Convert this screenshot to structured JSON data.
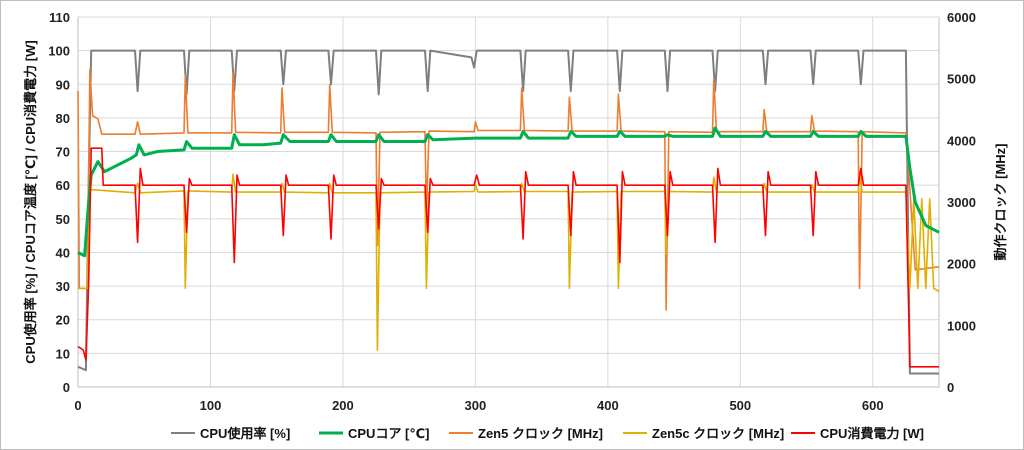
{
  "chart_data": {
    "type": "line",
    "title": "",
    "xlabel": "",
    "ylabel": "CPU使用率 [%] / CPUコア温度 [℃] / CPU消費電力 [W]",
    "y2label": "動作クロック [MHz]",
    "xlim": [
      0,
      650
    ],
    "ylim": [
      0,
      110
    ],
    "y2lim": [
      0,
      6000
    ],
    "x_ticks": [
      "0",
      "100",
      "200",
      "300",
      "400",
      "500",
      "600"
    ],
    "y_ticks": [
      "0",
      "10",
      "20",
      "30",
      "40",
      "50",
      "60",
      "70",
      "80",
      "90",
      "100",
      "110"
    ],
    "y2_ticks": [
      "0",
      "1000",
      "2000",
      "3000",
      "4000",
      "5000",
      "6000"
    ],
    "grid": true,
    "legend_position": "bottom",
    "series": [
      {
        "name": "CPU使用率 [%]",
        "axis": "left",
        "color": "#7f7f7f",
        "points": [
          [
            0,
            6
          ],
          [
            3,
            5.5
          ],
          [
            6,
            5
          ],
          [
            8,
            60
          ],
          [
            10,
            100
          ],
          [
            43,
            100
          ],
          [
            45,
            88
          ],
          [
            47,
            100
          ],
          [
            80,
            100
          ],
          [
            82,
            87
          ],
          [
            84,
            100
          ],
          [
            116,
            100
          ],
          [
            118,
            88
          ],
          [
            120,
            100
          ],
          [
            153,
            100
          ],
          [
            155,
            90
          ],
          [
            157,
            100
          ],
          [
            189,
            100
          ],
          [
            191,
            90
          ],
          [
            193,
            100
          ],
          [
            225,
            100
          ],
          [
            227,
            87
          ],
          [
            229,
            100
          ],
          [
            262,
            100
          ],
          [
            264,
            88
          ],
          [
            266,
            100
          ],
          [
            297,
            98
          ],
          [
            299,
            95
          ],
          [
            301,
            100
          ],
          [
            334,
            100
          ],
          [
            336,
            88
          ],
          [
            338,
            100
          ],
          [
            370,
            100
          ],
          [
            372,
            88
          ],
          [
            374,
            100
          ],
          [
            407,
            100
          ],
          [
            409,
            88
          ],
          [
            411,
            100
          ],
          [
            443,
            100
          ],
          [
            445,
            88
          ],
          [
            447,
            100
          ],
          [
            479,
            100
          ],
          [
            481,
            88
          ],
          [
            483,
            100
          ],
          [
            517,
            100
          ],
          [
            519,
            90
          ],
          [
            521,
            100
          ],
          [
            553,
            100
          ],
          [
            555,
            90
          ],
          [
            557,
            100
          ],
          [
            589,
            100
          ],
          [
            591,
            90
          ],
          [
            593,
            100
          ],
          [
            625,
            100
          ],
          [
            628,
            4
          ],
          [
            650,
            4
          ]
        ]
      },
      {
        "name": "CPUコア [℃]",
        "axis": "left",
        "color": "#00b050",
        "points": [
          [
            0,
            40
          ],
          [
            5,
            39
          ],
          [
            8,
            55
          ],
          [
            10,
            63
          ],
          [
            15,
            67
          ],
          [
            20,
            64
          ],
          [
            30,
            66
          ],
          [
            40,
            68
          ],
          [
            44,
            69
          ],
          [
            46,
            72
          ],
          [
            50,
            69
          ],
          [
            60,
            70
          ],
          [
            80,
            70.5
          ],
          [
            82,
            73
          ],
          [
            86,
            71
          ],
          [
            100,
            71
          ],
          [
            116,
            71
          ],
          [
            118,
            75
          ],
          [
            122,
            72
          ],
          [
            140,
            72
          ],
          [
            153,
            72.5
          ],
          [
            155,
            75
          ],
          [
            160,
            73
          ],
          [
            189,
            73
          ],
          [
            191,
            75
          ],
          [
            195,
            73
          ],
          [
            225,
            73
          ],
          [
            227,
            75
          ],
          [
            231,
            73
          ],
          [
            262,
            73
          ],
          [
            264,
            75
          ],
          [
            268,
            73.5
          ],
          [
            300,
            74
          ],
          [
            334,
            74
          ],
          [
            336,
            76
          ],
          [
            340,
            74
          ],
          [
            370,
            74
          ],
          [
            372,
            76
          ],
          [
            376,
            74.5
          ],
          [
            407,
            74.5
          ],
          [
            409,
            76
          ],
          [
            413,
            74.5
          ],
          [
            443,
            74.5
          ],
          [
            445,
            75
          ],
          [
            449,
            74.5
          ],
          [
            479,
            74.5
          ],
          [
            481,
            77
          ],
          [
            485,
            74.5
          ],
          [
            517,
            74.5
          ],
          [
            519,
            76
          ],
          [
            523,
            74.5
          ],
          [
            553,
            74.5
          ],
          [
            555,
            76
          ],
          [
            559,
            74.5
          ],
          [
            589,
            74.5
          ],
          [
            591,
            76
          ],
          [
            595,
            74.5
          ],
          [
            625,
            74.5
          ],
          [
            628,
            65
          ],
          [
            632,
            55
          ],
          [
            640,
            48
          ],
          [
            650,
            46
          ]
        ]
      },
      {
        "name": "Zen5 クロック [MHz]",
        "axis": "right",
        "color": "#ed7d31",
        "points": [
          [
            0,
            4800
          ],
          [
            1,
            1600
          ],
          [
            7,
            1600
          ],
          [
            9,
            5150
          ],
          [
            11,
            4400
          ],
          [
            15,
            4350
          ],
          [
            18,
            4100
          ],
          [
            43,
            4100
          ],
          [
            45,
            4300
          ],
          [
            47,
            4100
          ],
          [
            80,
            4120
          ],
          [
            81,
            5050
          ],
          [
            83,
            4120
          ],
          [
            116,
            4120
          ],
          [
            117,
            5100
          ],
          [
            119,
            4130
          ],
          [
            153,
            4120
          ],
          [
            154,
            4850
          ],
          [
            156,
            4130
          ],
          [
            189,
            4130
          ],
          [
            190,
            4900
          ],
          [
            192,
            4130
          ],
          [
            225,
            4120
          ],
          [
            226,
            2300
          ],
          [
            228,
            4130
          ],
          [
            262,
            4140
          ],
          [
            263,
            2800
          ],
          [
            265,
            4150
          ],
          [
            299,
            4140
          ],
          [
            300,
            4300
          ],
          [
            302,
            4160
          ],
          [
            334,
            4160
          ],
          [
            335,
            4850
          ],
          [
            337,
            4160
          ],
          [
            370,
            4150
          ],
          [
            371,
            4700
          ],
          [
            373,
            4150
          ],
          [
            407,
            4150
          ],
          [
            408,
            4750
          ],
          [
            410,
            4150
          ],
          [
            443,
            4140
          ],
          [
            444,
            1250
          ],
          [
            446,
            4140
          ],
          [
            479,
            4130
          ],
          [
            480,
            5000
          ],
          [
            482,
            4140
          ],
          [
            517,
            4140
          ],
          [
            518,
            4500
          ],
          [
            520,
            4140
          ],
          [
            553,
            4140
          ],
          [
            554,
            4400
          ],
          [
            556,
            4150
          ],
          [
            589,
            4140
          ],
          [
            590,
            1600
          ],
          [
            592,
            4140
          ],
          [
            625,
            4120
          ],
          [
            628,
            3200
          ],
          [
            632,
            1900
          ],
          [
            650,
            1950
          ]
        ]
      },
      {
        "name": "Zen5c クロック [MHz]",
        "axis": "right",
        "color": "#dfb000",
        "points": [
          [
            0,
            1600
          ],
          [
            7,
            1600
          ],
          [
            9,
            3200
          ],
          [
            11,
            3200
          ],
          [
            43,
            3150
          ],
          [
            45,
            3300
          ],
          [
            47,
            3150
          ],
          [
            80,
            3180
          ],
          [
            81,
            1600
          ],
          [
            83,
            3180
          ],
          [
            116,
            3160
          ],
          [
            117,
            3450
          ],
          [
            119,
            3160
          ],
          [
            153,
            3160
          ],
          [
            154,
            3300
          ],
          [
            156,
            3160
          ],
          [
            189,
            3150
          ],
          [
            190,
            3300
          ],
          [
            192,
            3150
          ],
          [
            225,
            3150
          ],
          [
            226,
            600
          ],
          [
            228,
            3150
          ],
          [
            262,
            3160
          ],
          [
            263,
            1600
          ],
          [
            265,
            3160
          ],
          [
            299,
            3170
          ],
          [
            300,
            3280
          ],
          [
            302,
            3160
          ],
          [
            334,
            3170
          ],
          [
            335,
            3300
          ],
          [
            337,
            3170
          ],
          [
            370,
            3170
          ],
          [
            371,
            1600
          ],
          [
            373,
            3160
          ],
          [
            407,
            3170
          ],
          [
            408,
            1600
          ],
          [
            410,
            3170
          ],
          [
            443,
            3170
          ],
          [
            444,
            2150
          ],
          [
            446,
            3170
          ],
          [
            479,
            3160
          ],
          [
            480,
            3400
          ],
          [
            482,
            3160
          ],
          [
            517,
            3160
          ],
          [
            518,
            3300
          ],
          [
            520,
            3160
          ],
          [
            553,
            3160
          ],
          [
            554,
            3280
          ],
          [
            556,
            3160
          ],
          [
            589,
            3160
          ],
          [
            590,
            3400
          ],
          [
            592,
            3160
          ],
          [
            625,
            3160
          ],
          [
            628,
            1600
          ],
          [
            631,
            3050
          ],
          [
            634,
            1600
          ],
          [
            637,
            3050
          ],
          [
            640,
            1600
          ],
          [
            643,
            3050
          ],
          [
            646,
            1600
          ],
          [
            650,
            1550
          ]
        ]
      },
      {
        "name": "CPU消費電力 [W]",
        "axis": "left",
        "color": "#ff0000",
        "points": [
          [
            0,
            12
          ],
          [
            4,
            11
          ],
          [
            6,
            8
          ],
          [
            8,
            30
          ],
          [
            10,
            71
          ],
          [
            18,
            71
          ],
          [
            19,
            60
          ],
          [
            43,
            60
          ],
          [
            45,
            43
          ],
          [
            47,
            65
          ],
          [
            49,
            60
          ],
          [
            80,
            60
          ],
          [
            82,
            46
          ],
          [
            84,
            62
          ],
          [
            86,
            60
          ],
          [
            116,
            60
          ],
          [
            118,
            37
          ],
          [
            120,
            63
          ],
          [
            122,
            60
          ],
          [
            153,
            60
          ],
          [
            155,
            45
          ],
          [
            157,
            63
          ],
          [
            159,
            60
          ],
          [
            189,
            60
          ],
          [
            191,
            44
          ],
          [
            193,
            63
          ],
          [
            195,
            60
          ],
          [
            225,
            60
          ],
          [
            227,
            47
          ],
          [
            229,
            62
          ],
          [
            231,
            60
          ],
          [
            262,
            60
          ],
          [
            264,
            46
          ],
          [
            266,
            62
          ],
          [
            268,
            60
          ],
          [
            297,
            60
          ],
          [
            299,
            60
          ],
          [
            301,
            63
          ],
          [
            303,
            60
          ],
          [
            334,
            60
          ],
          [
            336,
            44
          ],
          [
            338,
            64
          ],
          [
            340,
            60
          ],
          [
            370,
            60
          ],
          [
            372,
            45
          ],
          [
            374,
            64
          ],
          [
            376,
            60
          ],
          [
            407,
            60
          ],
          [
            409,
            37
          ],
          [
            411,
            64
          ],
          [
            413,
            60
          ],
          [
            443,
            60
          ],
          [
            445,
            45
          ],
          [
            447,
            64
          ],
          [
            449,
            60
          ],
          [
            479,
            60
          ],
          [
            481,
            43
          ],
          [
            483,
            65
          ],
          [
            485,
            60
          ],
          [
            517,
            60
          ],
          [
            519,
            45
          ],
          [
            521,
            64
          ],
          [
            523,
            60
          ],
          [
            553,
            60
          ],
          [
            555,
            45
          ],
          [
            557,
            64
          ],
          [
            559,
            60
          ],
          [
            589,
            60
          ],
          [
            591,
            65
          ],
          [
            593,
            60
          ],
          [
            625,
            60
          ],
          [
            628,
            6
          ],
          [
            650,
            6
          ]
        ]
      }
    ]
  }
}
